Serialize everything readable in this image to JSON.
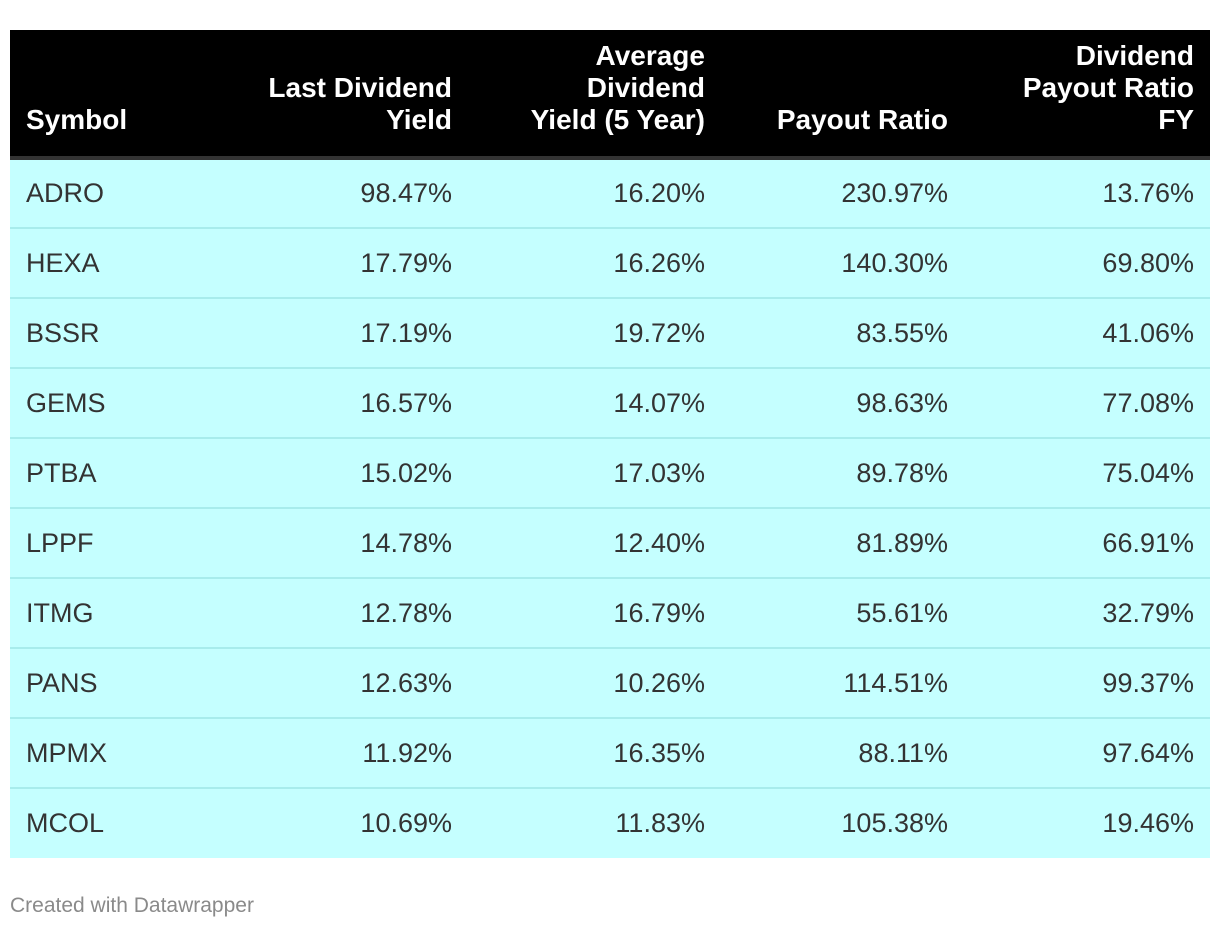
{
  "chart_data": {
    "type": "table",
    "columns": [
      {
        "key": "symbol",
        "label_lines": [
          "Symbol"
        ],
        "align": "left"
      },
      {
        "key": "last_dividend_yield",
        "label_lines": [
          "Last Dividend",
          "Yield"
        ],
        "align": "right"
      },
      {
        "key": "avg_dividend_yield_5y",
        "label_lines": [
          "Average",
          "Dividend",
          "Yield (5 Year)"
        ],
        "align": "right"
      },
      {
        "key": "payout_ratio",
        "label_lines": [
          "Payout Ratio"
        ],
        "align": "right"
      },
      {
        "key": "dividend_payout_ratio_fy",
        "label_lines": [
          "Dividend",
          "Payout Ratio",
          "FY"
        ],
        "align": "right"
      }
    ],
    "rows": [
      [
        "ADRO",
        "98.47%",
        "16.20%",
        "230.97%",
        "13.76%"
      ],
      [
        "HEXA",
        "17.79%",
        "16.26%",
        "140.30%",
        "69.80%"
      ],
      [
        "BSSR",
        "17.19%",
        "19.72%",
        "83.55%",
        "41.06%"
      ],
      [
        "GEMS",
        "16.57%",
        "14.07%",
        "98.63%",
        "77.08%"
      ],
      [
        "PTBA",
        "15.02%",
        "17.03%",
        "89.78%",
        "75.04%"
      ],
      [
        "LPPF",
        "14.78%",
        "12.40%",
        "81.89%",
        "66.91%"
      ],
      [
        "ITMG",
        "12.78%",
        "16.79%",
        "55.61%",
        "32.79%"
      ],
      [
        "PANS",
        "12.63%",
        "10.26%",
        "114.51%",
        "99.37%"
      ],
      [
        "MPMX",
        "11.92%",
        "16.35%",
        "88.11%",
        "97.64%"
      ],
      [
        "MCOL",
        "10.69%",
        "11.83%",
        "105.38%",
        "19.46%"
      ]
    ]
  },
  "colors": {
    "header_background": "#000000",
    "header_text": "#ffffff",
    "row_background": "#c5ffff",
    "cell_text": "#333333",
    "footer_text": "#8a8a8a"
  },
  "footer": {
    "credit": "Created with Datawrapper"
  }
}
